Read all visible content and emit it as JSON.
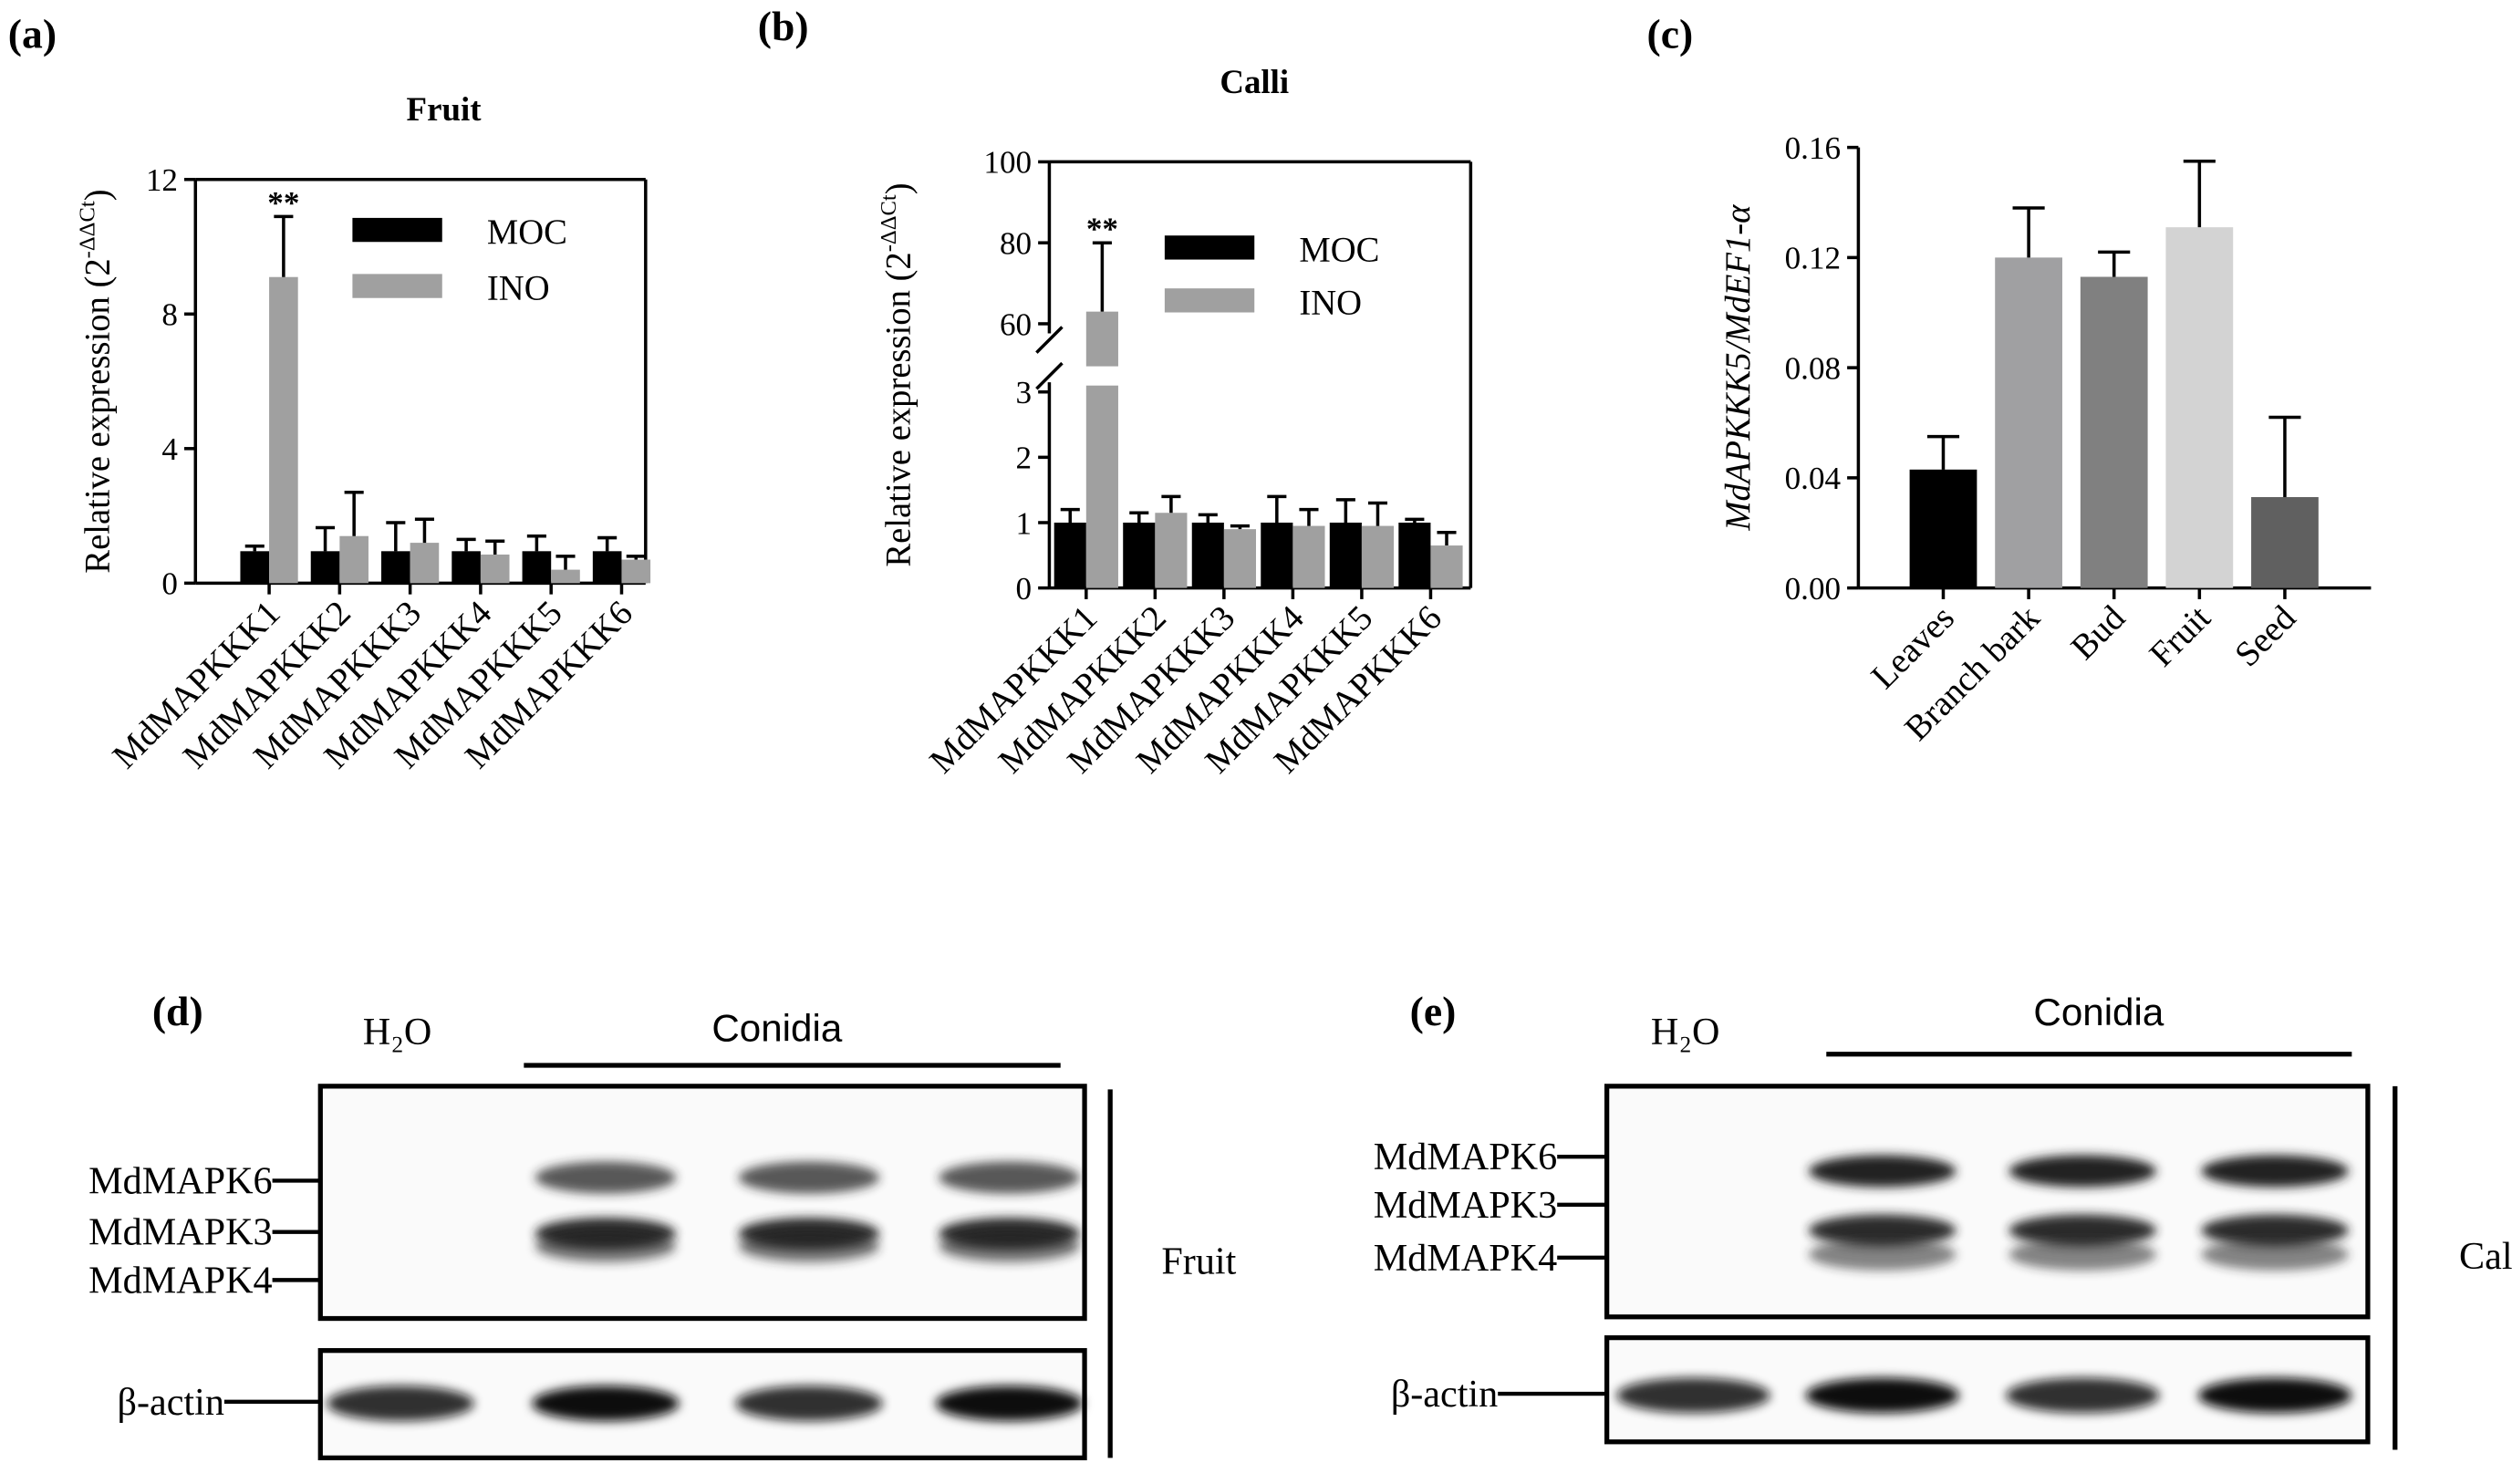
{
  "chart_data": [
    {
      "type": "bar",
      "panel": "(a)",
      "title": "Fruit",
      "ylabel": [
        "Relative expression (2",
        "-ΔΔCt",
        ")"
      ],
      "categories": [
        "MdMAPKKK1",
        "MdMAPKKK2",
        "MdMAPKKK3",
        "MdMAPKKK4",
        "MdMAPKKK5",
        "MdMAPKKK6"
      ],
      "series": [
        {
          "name": "MOC",
          "color": "#000000",
          "values": [
            0.95,
            0.95,
            0.95,
            0.95,
            0.95,
            0.95
          ],
          "errors": [
            0.15,
            0.7,
            0.85,
            0.35,
            0.45,
            0.4
          ]
        },
        {
          "name": "INO",
          "color": "#a0a0a0",
          "values": [
            9.1,
            1.4,
            1.2,
            0.85,
            0.4,
            0.7
          ],
          "errors": [
            1.8,
            1.3,
            0.7,
            0.4,
            0.4,
            0.1
          ]
        }
      ],
      "ylim": [
        0,
        12
      ],
      "yticks": [
        0,
        4,
        8,
        12
      ],
      "annotation": "**"
    },
    {
      "type": "bar",
      "panel": "(b)",
      "title": "Calli",
      "ylabel": [
        "Relative expression (2",
        "-ΔΔCt",
        ")"
      ],
      "categories": [
        "MdMAPKKK1",
        "MdMAPKKK2",
        "MdMAPKKK3",
        "MdMAPKKK4",
        "MdMAPKKK5",
        "MdMAPKKK6"
      ],
      "series": [
        {
          "name": "MOC",
          "color": "#000000",
          "values": [
            1,
            1,
            1,
            1,
            1,
            1
          ],
          "errors": [
            0.2,
            0.15,
            0.12,
            0.4,
            0.35,
            0.05
          ]
        },
        {
          "name": "INO",
          "color": "#a0a0a0",
          "values": [
            63,
            1.15,
            0.9,
            0.95,
            0.95,
            0.65
          ],
          "errors": [
            17,
            0.25,
            0.05,
            0.25,
            0.35,
            0.2
          ]
        }
      ],
      "ylim": [
        0,
        100
      ],
      "ybreak": [
        3,
        60
      ],
      "yticks": [
        0,
        1,
        2,
        3,
        60,
        80,
        100
      ],
      "annotation": "**"
    },
    {
      "type": "bar",
      "panel": "(c)",
      "ylabel": "MdAPKKK5/MdEF1-α",
      "categories": [
        "Leaves",
        "Branch bark",
        "Bud",
        "Fruit",
        "Seed"
      ],
      "values": [
        0.043,
        0.12,
        0.113,
        0.131,
        0.033
      ],
      "errors": [
        0.012,
        0.018,
        0.009,
        0.024,
        0.029
      ],
      "colors": [
        "#000000",
        "#a0a0a2",
        "#808080",
        "#d3d3d3",
        "#606060"
      ],
      "ylim": [
        0,
        0.16
      ],
      "yticks": [
        {
          "value": 0,
          "label": "0.00"
        },
        0.04,
        0.08,
        0.12,
        0.16
      ]
    }
  ],
  "blots": [
    {
      "panel": "(d)",
      "control": "H₂O",
      "treatment": "Conidia",
      "proteins": [
        "MdMAPK6",
        "MdMAPK3",
        "MdMAPK4"
      ],
      "loading": "β-actin",
      "tissue": "Fruit"
    },
    {
      "panel": "(e)",
      "control": "H₂O",
      "treatment": "Conidia",
      "proteins": [
        "MdMAPK6",
        "MdMAPK3",
        "MdMAPK4"
      ],
      "loading": "β-actin",
      "tissue": "Calli"
    }
  ]
}
